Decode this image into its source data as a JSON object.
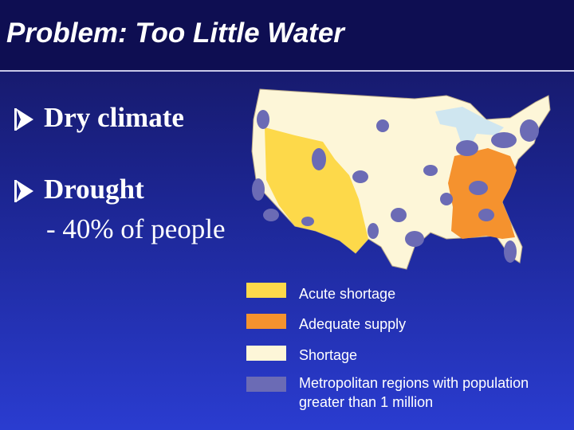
{
  "header": {
    "title": "Problem: Too Little Water"
  },
  "bullets": [
    {
      "text": "Dry climate"
    },
    {
      "text": "Drought",
      "sub": "- 40% of people"
    }
  ],
  "legend": [
    {
      "label": "Acute shortage",
      "color": "#fdd94a"
    },
    {
      "label": "Adequate supply",
      "color": "#f5922e"
    },
    {
      "label": "Shortage",
      "color": "#fdf6d8"
    },
    {
      "label": "Metropolitan regions with population greater than 1 million",
      "color": "#6b6bb5"
    }
  ]
}
